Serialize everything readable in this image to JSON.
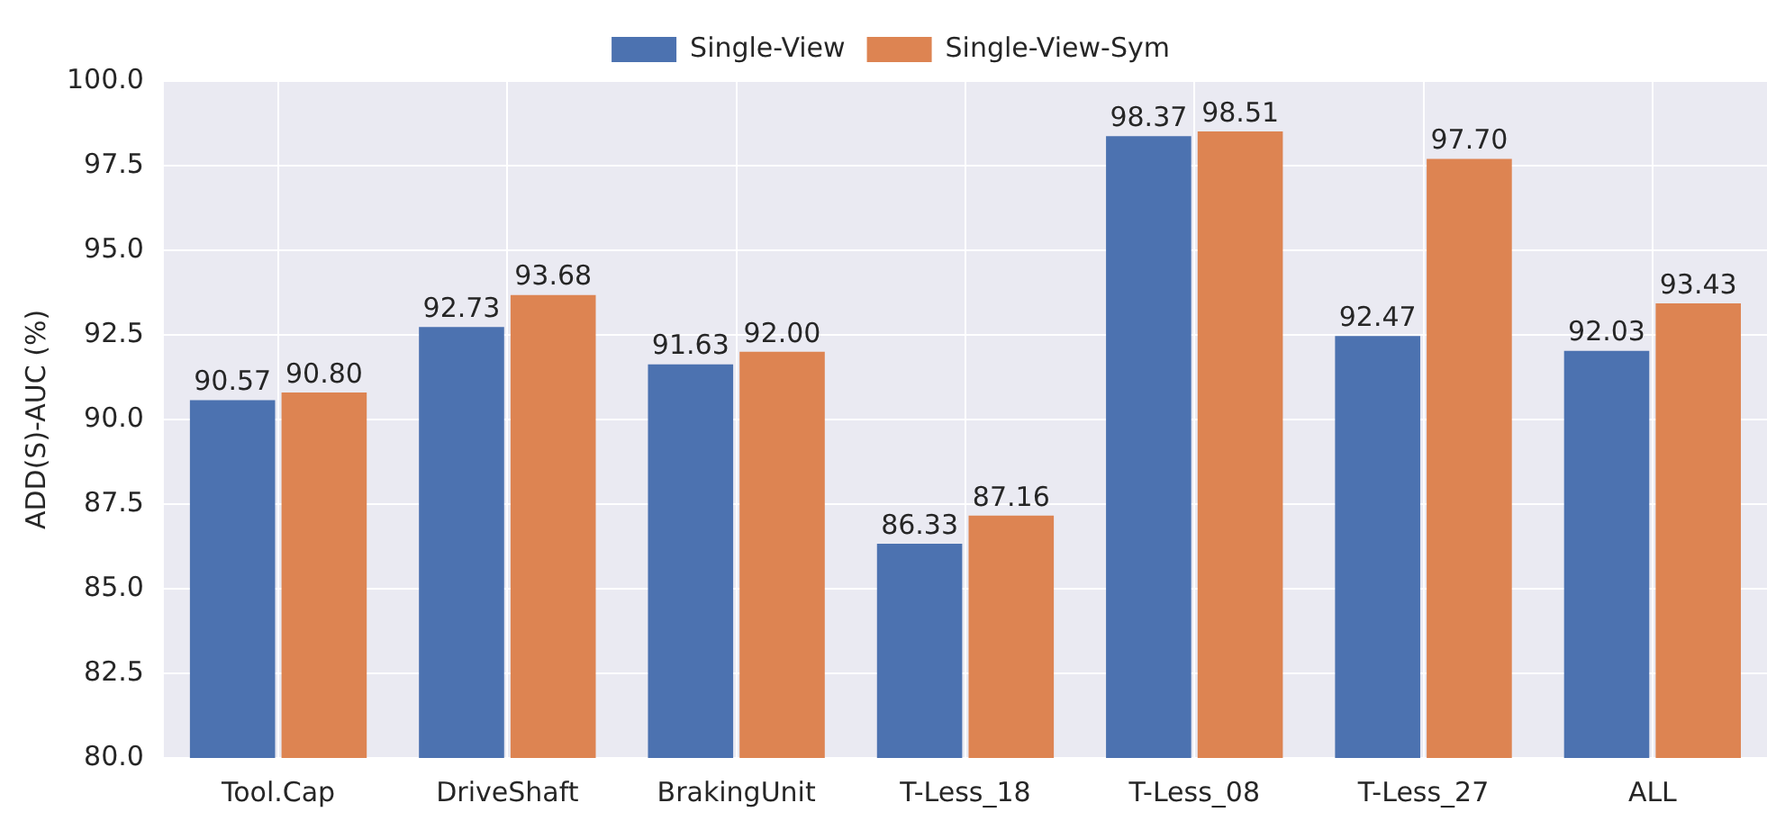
{
  "chart_data": {
    "type": "bar",
    "ylabel": "ADD(S)-AUC (%)",
    "categories": [
      "Tool.Cap",
      "DriveShaft",
      "BrakingUnit",
      "T-Less_18",
      "T-Less_08",
      "T-Less_27",
      "ALL"
    ],
    "series": [
      {
        "name": "Single-View",
        "color": "#4c72b0",
        "values": [
          90.57,
          92.73,
          91.63,
          86.33,
          98.37,
          92.47,
          92.03
        ],
        "value_labels": [
          "90.57",
          "92.73",
          "91.63",
          "86.33",
          "98.37",
          "92.47",
          "92.03"
        ]
      },
      {
        "name": "Single-View-Sym",
        "color": "#dd8452",
        "values": [
          90.8,
          93.68,
          92.0,
          87.16,
          98.51,
          97.7,
          93.43
        ],
        "value_labels": [
          "90.80",
          "93.68",
          "92.00",
          "87.16",
          "98.51",
          "97.70",
          "93.43"
        ]
      }
    ],
    "ylim": [
      80,
      100
    ],
    "yticks": [
      {
        "value": 80,
        "label": "80.0"
      },
      {
        "value": 82.5,
        "label": "82.5"
      },
      {
        "value": 85,
        "label": "85.0"
      },
      {
        "value": 87.5,
        "label": "87.5"
      },
      {
        "value": 90,
        "label": "90.0"
      },
      {
        "value": 92.5,
        "label": "92.5"
      },
      {
        "value": 95,
        "label": "95.0"
      },
      {
        "value": 97.5,
        "label": "97.5"
      },
      {
        "value": 100,
        "label": "100.0"
      }
    ],
    "grid": true,
    "legend": "top"
  }
}
